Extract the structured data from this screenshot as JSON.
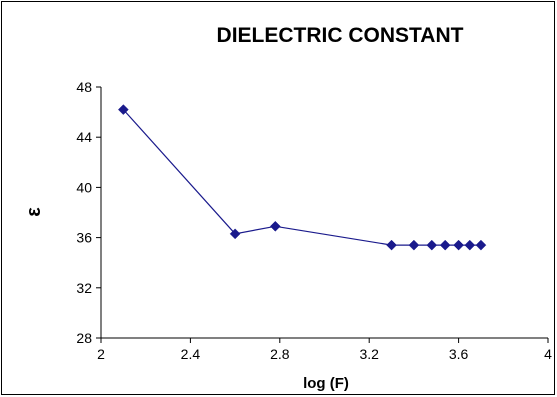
{
  "chart_data": {
    "type": "line",
    "title": "DIELECTRIC CONSTANT",
    "xlabel": "log (F)",
    "ylabel": "ε",
    "xlim": [
      2,
      4
    ],
    "ylim": [
      28,
      48
    ],
    "xticks": [
      2,
      2.4,
      2.8,
      3.2,
      3.6,
      4
    ],
    "xtick_labels": [
      "2",
      "2.4",
      "2.8",
      "3.2",
      "3.6",
      "4"
    ],
    "yticks": [
      28,
      32,
      36,
      40,
      44,
      48
    ],
    "ytick_labels": [
      "28",
      "32",
      "36",
      "40",
      "44",
      "48"
    ],
    "grid": false,
    "legend": "none",
    "series": [
      {
        "color": "#1a1a8c",
        "marker": "diamond",
        "x": [
          2.1,
          2.6,
          2.78,
          3.3,
          3.4,
          3.48,
          3.54,
          3.6,
          3.65,
          3.7
        ],
        "y": [
          46.2,
          36.3,
          36.9,
          35.4,
          35.4,
          35.4,
          35.4,
          35.4,
          35.4,
          35.4
        ]
      }
    ]
  }
}
